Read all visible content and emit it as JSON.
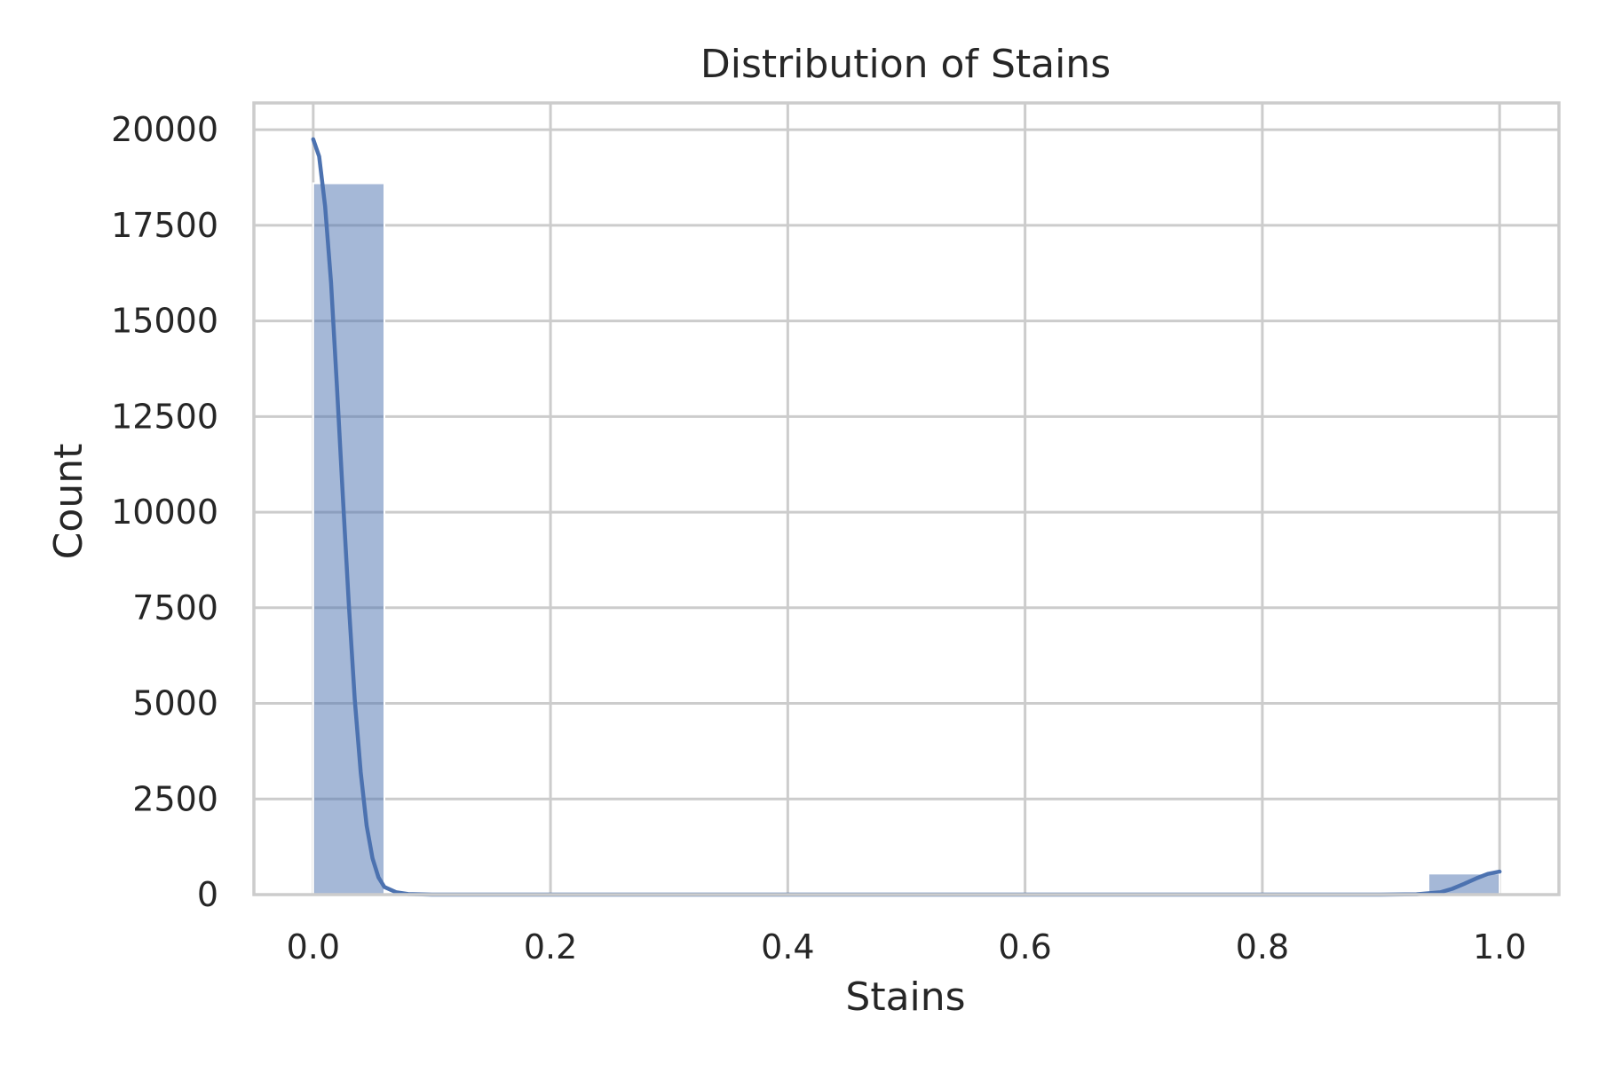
{
  "chart_data": {
    "type": "bar",
    "title": "Distribution of Stains",
    "xlabel": "Stains",
    "ylabel": "Count",
    "xlim": [
      -0.05,
      1.05
    ],
    "ylim": [
      0,
      20700
    ],
    "grid": true,
    "colors": {
      "bar": "#4c72b0",
      "bar_opacity": 0.5,
      "kde": "#4c72b0"
    },
    "x_ticks": [
      {
        "value": 0.0,
        "label": "0.0"
      },
      {
        "value": 0.2,
        "label": "0.2"
      },
      {
        "value": 0.4,
        "label": "0.4"
      },
      {
        "value": 0.6,
        "label": "0.6"
      },
      {
        "value": 0.8,
        "label": "0.8"
      },
      {
        "value": 1.0,
        "label": "1.0"
      }
    ],
    "y_ticks": [
      {
        "value": 0,
        "label": "0"
      },
      {
        "value": 2500,
        "label": "2500"
      },
      {
        "value": 5000,
        "label": "5000"
      },
      {
        "value": 7500,
        "label": "7500"
      },
      {
        "value": 10000,
        "label": "10000"
      },
      {
        "value": 12500,
        "label": "12500"
      },
      {
        "value": 15000,
        "label": "15000"
      },
      {
        "value": 17500,
        "label": "17500"
      },
      {
        "value": 20000,
        "label": "20000"
      }
    ],
    "bars": [
      {
        "x0": 0.0,
        "x1": 0.06,
        "count": 18600
      },
      {
        "x0": 0.94,
        "x1": 1.0,
        "count": 550
      }
    ],
    "kde": [
      [
        0.0,
        19750
      ],
      [
        0.005,
        19300
      ],
      [
        0.01,
        18000
      ],
      [
        0.015,
        16000
      ],
      [
        0.02,
        13300
      ],
      [
        0.025,
        10400
      ],
      [
        0.03,
        7600
      ],
      [
        0.035,
        5100
      ],
      [
        0.04,
        3200
      ],
      [
        0.045,
        1800
      ],
      [
        0.05,
        950
      ],
      [
        0.055,
        450
      ],
      [
        0.06,
        200
      ],
      [
        0.07,
        60
      ],
      [
        0.08,
        15
      ],
      [
        0.1,
        0
      ],
      [
        0.5,
        0
      ],
      [
        0.9,
        0
      ],
      [
        0.93,
        10
      ],
      [
        0.95,
        60
      ],
      [
        0.96,
        150
      ],
      [
        0.97,
        280
      ],
      [
        0.98,
        420
      ],
      [
        0.99,
        540
      ],
      [
        1.0,
        600
      ]
    ]
  }
}
